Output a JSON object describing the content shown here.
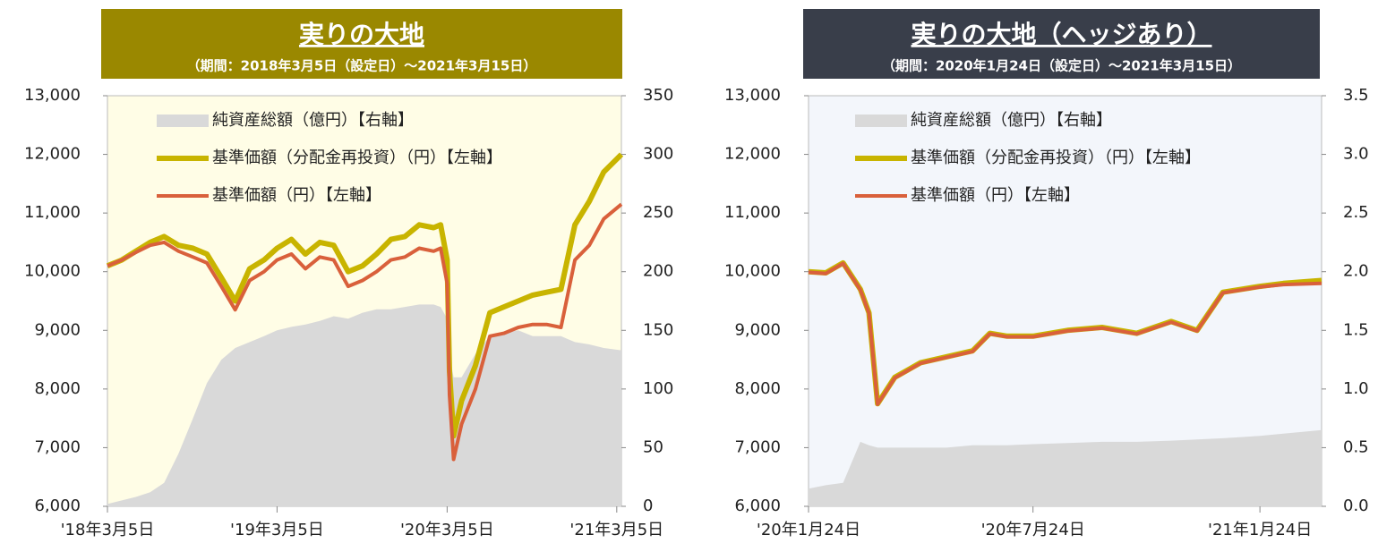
{
  "chart_data": [
    {
      "type": "line",
      "title": "実りの大地",
      "subtitle": "（期間：2018年3月5日（設定日）～2021年3月15日）",
      "x": [
        "2018-03-05",
        "2018-04-05",
        "2018-05-05",
        "2018-06-05",
        "2018-07-05",
        "2018-08-05",
        "2018-09-05",
        "2018-10-05",
        "2018-11-05",
        "2018-12-05",
        "2019-01-05",
        "2019-02-05",
        "2019-03-05",
        "2019-04-05",
        "2019-05-05",
        "2019-06-05",
        "2019-07-05",
        "2019-08-05",
        "2019-09-05",
        "2019-10-05",
        "2019-11-05",
        "2019-12-05",
        "2020-01-05",
        "2020-02-05",
        "2020-02-20",
        "2020-03-05",
        "2020-03-10",
        "2020-03-19",
        "2020-04-05",
        "2020-05-05",
        "2020-06-05",
        "2020-07-05",
        "2020-08-05",
        "2020-09-05",
        "2020-10-05",
        "2020-11-05",
        "2020-12-05",
        "2021-01-05",
        "2021-02-05",
        "2021-03-15"
      ],
      "series": [
        {
          "name": "純資産総額（億円）【右軸】",
          "color": "#d9d9d9",
          "axis": "y2",
          "kind": "area",
          "values": [
            2,
            5,
            8,
            12,
            20,
            45,
            75,
            105,
            125,
            135,
            140,
            145,
            150,
            153,
            155,
            158,
            162,
            160,
            165,
            168,
            168,
            170,
            172,
            172,
            170,
            160,
            130,
            110,
            110,
            130,
            145,
            148,
            150,
            145,
            145,
            145,
            140,
            138,
            135,
            133
          ]
        },
        {
          "name": "基準価額（分配金再投資）（円）【左軸】",
          "color": "#c8b400",
          "width": 6,
          "values": [
            10100,
            10200,
            10350,
            10500,
            10600,
            10450,
            10400,
            10300,
            9900,
            9500,
            10050,
            10200,
            10400,
            10550,
            10300,
            10500,
            10450,
            10000,
            10100,
            10300,
            10550,
            10600,
            10800,
            10750,
            10800,
            10200,
            8300,
            7200,
            7800,
            8400,
            9300,
            9400,
            9500,
            9600,
            9650,
            9700,
            10800,
            11200,
            11700,
            12000
          ]
        },
        {
          "name": "基準価額（円）【左軸】",
          "color": "#d9603b",
          "width": 4,
          "values": [
            10100,
            10200,
            10330,
            10450,
            10500,
            10350,
            10250,
            10150,
            9750,
            9350,
            9850,
            10000,
            10200,
            10300,
            10050,
            10250,
            10200,
            9750,
            9850,
            10000,
            10200,
            10250,
            10400,
            10350,
            10400,
            9800,
            7900,
            6800,
            7400,
            8000,
            8900,
            8950,
            9050,
            9100,
            9100,
            9050,
            10200,
            10450,
            10900,
            11150
          ]
        }
      ],
      "xlim": [
        "2018-03-05",
        "2021-03-15"
      ],
      "xticks": [
        {
          "value": "2018-03-05",
          "label": "'18年3月5日"
        },
        {
          "value": "2019-03-05",
          "label": "'19年3月5日"
        },
        {
          "value": "2020-03-05",
          "label": "'20年3月5日"
        },
        {
          "value": "2021-03-05",
          "label": "'21年3月5日"
        }
      ],
      "ylim": [
        6000,
        13000
      ],
      "yticks": [
        {
          "value": 6000,
          "label": "6,000"
        },
        {
          "value": 7000,
          "label": "7,000"
        },
        {
          "value": 8000,
          "label": "8,000"
        },
        {
          "value": 9000,
          "label": "9,000"
        },
        {
          "value": 10000,
          "label": "10,000"
        },
        {
          "value": 11000,
          "label": "11,000"
        },
        {
          "value": 12000,
          "label": "12,000"
        },
        {
          "value": 13000,
          "label": "13,000"
        }
      ],
      "y2lim": [
        0,
        350
      ],
      "y2ticks": [
        0,
        50,
        100,
        150,
        200,
        250,
        300,
        350
      ],
      "title_color": "#9a8800",
      "plot_color": "#fffde6"
    },
    {
      "type": "line",
      "title": "実りの大地（ヘッジあり）",
      "subtitle": "（期間：2020年1月24日（設定日）～2021年3月15日）",
      "x": [
        "2020-01-24",
        "2020-02-07",
        "2020-02-21",
        "2020-03-06",
        "2020-03-13",
        "2020-03-20",
        "2020-04-03",
        "2020-04-24",
        "2020-05-15",
        "2020-06-05",
        "2020-06-19",
        "2020-07-03",
        "2020-07-24",
        "2020-08-21",
        "2020-09-18",
        "2020-10-16",
        "2020-11-13",
        "2020-12-04",
        "2020-12-25",
        "2021-01-24",
        "2021-02-12",
        "2021-03-15"
      ],
      "series": [
        {
          "name": "純資産総額（億円）【右軸】",
          "color": "#d9d9d9",
          "axis": "y2",
          "kind": "area",
          "values": [
            0.15,
            0.18,
            0.2,
            0.55,
            0.52,
            0.5,
            0.5,
            0.5,
            0.5,
            0.52,
            0.52,
            0.52,
            0.53,
            0.54,
            0.55,
            0.55,
            0.56,
            0.57,
            0.58,
            0.6,
            0.62,
            0.65
          ]
        },
        {
          "name": "基準価額（分配金再投資）（円）【左軸】",
          "color": "#c8b400",
          "width": 6,
          "values": [
            10000,
            9980,
            10150,
            9700,
            9300,
            7750,
            8200,
            8450,
            8550,
            8650,
            8950,
            8900,
            8900,
            9000,
            9050,
            8950,
            9150,
            9000,
            9650,
            9750,
            9800,
            9850
          ]
        },
        {
          "name": "基準価額（円）【左軸】",
          "color": "#d9603b",
          "width": 4,
          "values": [
            9990,
            9970,
            10140,
            9690,
            9290,
            7740,
            8190,
            8440,
            8540,
            8640,
            8940,
            8890,
            8890,
            8990,
            9040,
            8940,
            9140,
            8990,
            9640,
            9740,
            9780,
            9800
          ]
        }
      ],
      "xlim": [
        "2020-01-24",
        "2021-03-15"
      ],
      "xticks": [
        {
          "value": "2020-01-24",
          "label": "'20年1月24日"
        },
        {
          "value": "2020-07-24",
          "label": "'20年7月24日"
        },
        {
          "value": "2021-01-24",
          "label": "'21年1月24日"
        }
      ],
      "ylim": [
        6000,
        13000
      ],
      "yticks": [
        {
          "value": 6000,
          "label": "6,000"
        },
        {
          "value": 7000,
          "label": "7,000"
        },
        {
          "value": 8000,
          "label": "8,000"
        },
        {
          "value": 9000,
          "label": "9,000"
        },
        {
          "value": 10000,
          "label": "10,000"
        },
        {
          "value": 11000,
          "label": "11,000"
        },
        {
          "value": 12000,
          "label": "12,000"
        },
        {
          "value": 13000,
          "label": "13,000"
        }
      ],
      "y2lim": [
        0,
        3.5
      ],
      "y2ticks": [
        {
          "value": 0,
          "label": "0.0"
        },
        0.5,
        {
          "value": 1,
          "label": "1.0"
        },
        1.5,
        {
          "value": 2,
          "label": "2.0"
        },
        2.5,
        {
          "value": 3,
          "label": "3.0"
        },
        3.5
      ],
      "title_color": "#393e4a",
      "plot_color": "#f3f6fb"
    }
  ]
}
